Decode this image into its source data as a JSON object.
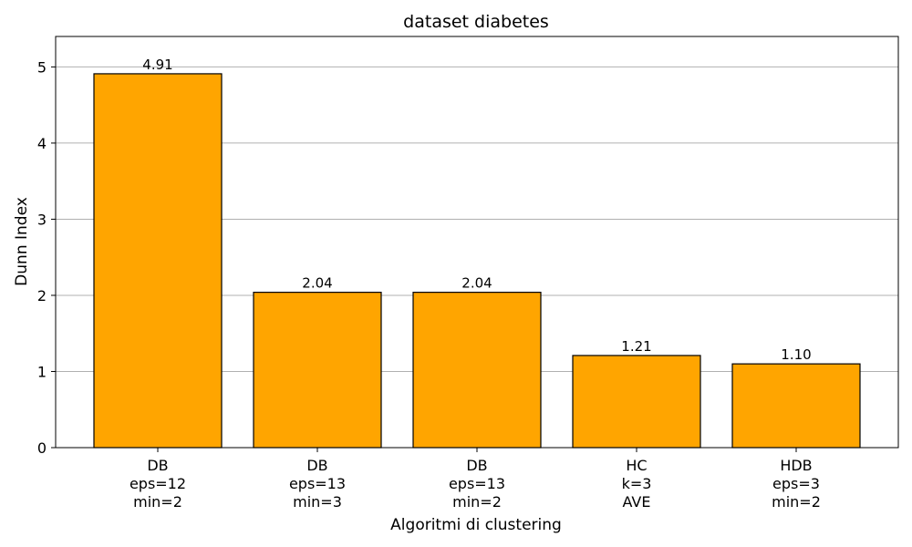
{
  "chart_data": {
    "type": "bar",
    "title": "dataset diabetes",
    "xlabel": "Algoritmi di clustering",
    "ylabel": "Dunn Index",
    "categories": [
      [
        "DB",
        "eps=12",
        "min=2"
      ],
      [
        "DB",
        "eps=13",
        "min=3"
      ],
      [
        "DB",
        "eps=13",
        "min=2"
      ],
      [
        "HC",
        "k=3",
        "AVE"
      ],
      [
        "HDB",
        "eps=3",
        "min=2"
      ]
    ],
    "values": [
      4.91,
      2.04,
      2.04,
      1.21,
      1.1
    ],
    "data_labels": [
      "4.91",
      "2.04",
      "2.04",
      "1.21",
      "1.10"
    ],
    "ylim": [
      0,
      5.4
    ],
    "yticks": [
      0,
      1,
      2,
      3,
      4,
      5
    ],
    "grid": "y",
    "legend": "none",
    "colors": {
      "bar_fill": "#FFA500",
      "bar_edge": "#000000",
      "grid": "#b0b0b0"
    }
  }
}
